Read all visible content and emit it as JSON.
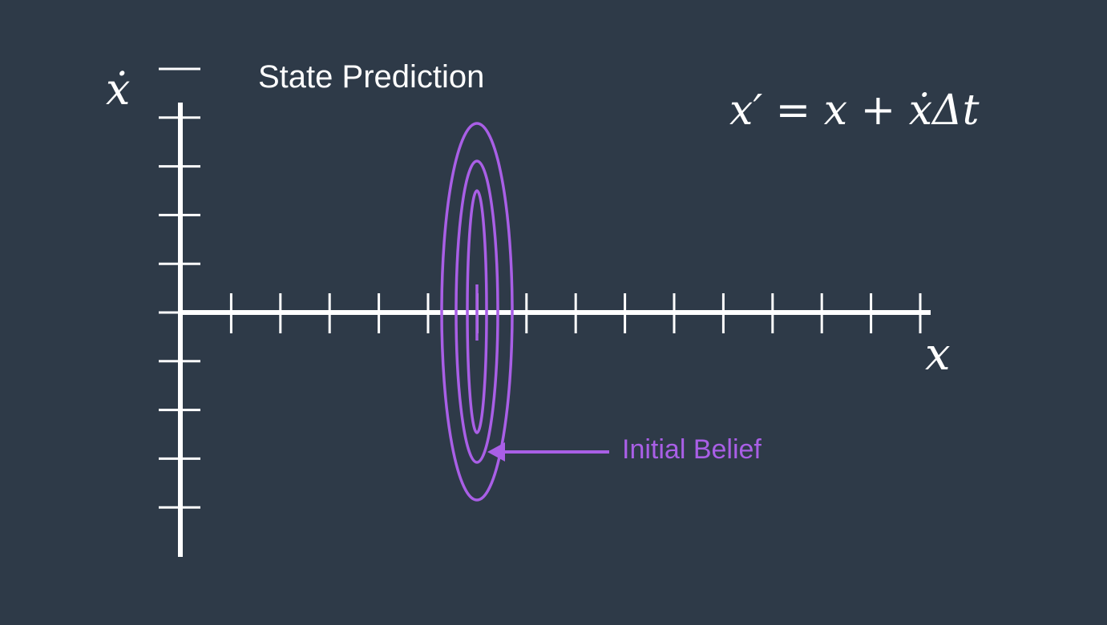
{
  "title": "State Prediction",
  "axes": {
    "y_label": "ẋ",
    "x_label": "x"
  },
  "equation": "x′ = x + ẋΔt",
  "annotation": {
    "label": "Initial Belief"
  },
  "colors": {
    "background": "#2e3a48",
    "axis": "#ffffff",
    "belief": "#a95fe6"
  }
}
